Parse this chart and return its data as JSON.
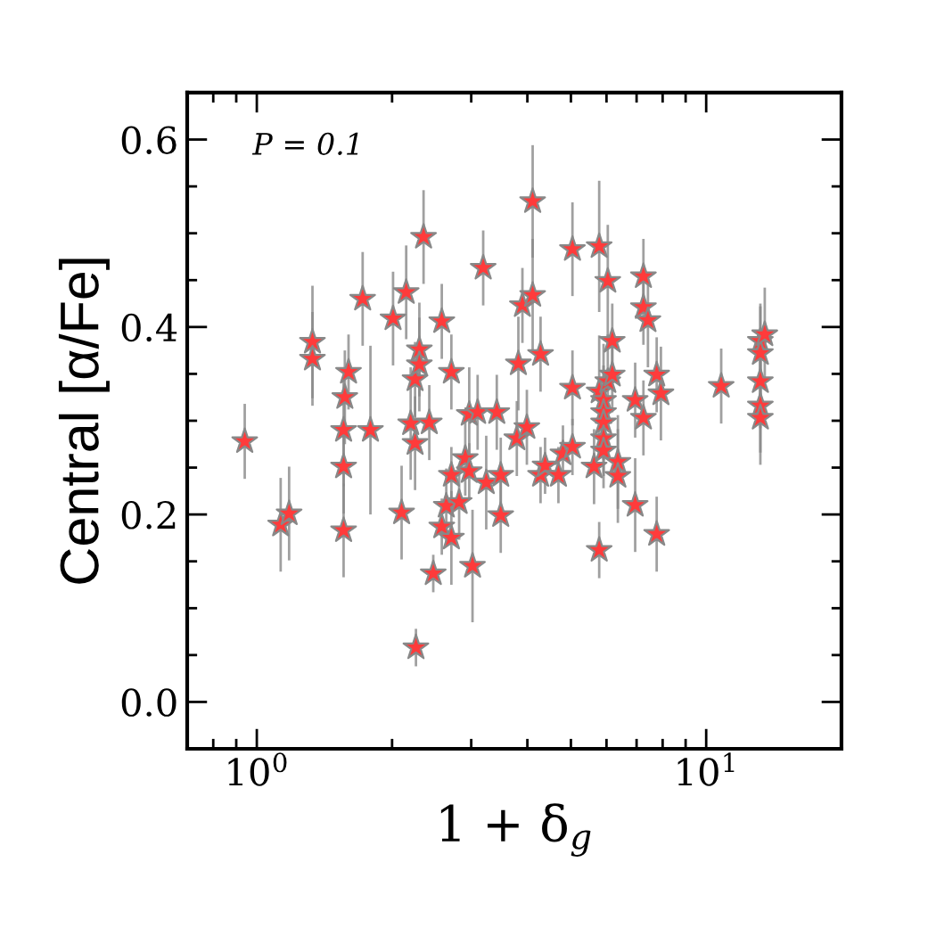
{
  "chart_data": {
    "type": "scatter",
    "xlabel": "1 + δ$_{g}$",
    "ylabel": "Central [α/Fe]",
    "annotations": [
      "P = 0.1"
    ],
    "log": "x",
    "grid": false,
    "marker": "star",
    "xlim": [
      0.7,
      20
    ],
    "xticks": [
      {
        "value": 1,
        "label": "10$^{0}$"
      },
      {
        "value": 10,
        "label": "10$^{1}$"
      }
    ],
    "ylim": [
      -0.05,
      0.65
    ],
    "yticks": [
      {
        "value": 0.0,
        "label": "0.0"
      },
      {
        "value": 0.2,
        "label": "0.2"
      },
      {
        "value": 0.4,
        "label": "0.4"
      },
      {
        "value": 0.6,
        "label": "0.6"
      }
    ],
    "series": [
      {
        "color": "#ff3b3b",
        "x": [
          0.94,
          1.13,
          1.18,
          1.33,
          1.33,
          1.56,
          1.56,
          1.56,
          1.57,
          1.6,
          1.72,
          1.79,
          2.01,
          2.1,
          2.15,
          2.2,
          2.25,
          2.25,
          2.26,
          2.3,
          2.3,
          2.35,
          2.42,
          2.47,
          2.58,
          2.58,
          2.64,
          2.71,
          2.71,
          2.71,
          2.82,
          2.91,
          2.97,
          2.97,
          3.02,
          3.1,
          3.19,
          3.24,
          3.42,
          3.49,
          3.49,
          3.79,
          3.82,
          3.9,
          3.99,
          4.11,
          4.11,
          4.28,
          4.28,
          4.38,
          4.69,
          4.8,
          5.04,
          5.04,
          5.04,
          5.63,
          5.78,
          5.78,
          5.78,
          5.91,
          5.91,
          5.91,
          5.91,
          5.91,
          6.04,
          6.04,
          6.18,
          6.18,
          6.36,
          6.36,
          6.95,
          6.95,
          7.25,
          7.25,
          7.25,
          7.42,
          7.76,
          7.76,
          7.93,
          10.8,
          13.2,
          13.2,
          13.2,
          13.2,
          13.2,
          13.5
        ],
        "values": [
          0.278,
          0.189,
          0.201,
          0.384,
          0.366,
          0.183,
          0.251,
          0.29,
          0.325,
          0.352,
          0.43,
          0.29,
          0.409,
          0.202,
          0.437,
          0.297,
          0.276,
          0.344,
          0.058,
          0.376,
          0.36,
          0.496,
          0.298,
          0.137,
          0.187,
          0.406,
          0.209,
          0.175,
          0.242,
          0.352,
          0.213,
          0.26,
          0.246,
          0.307,
          0.145,
          0.309,
          0.463,
          0.234,
          0.309,
          0.199,
          0.242,
          0.281,
          0.361,
          0.423,
          0.293,
          0.534,
          0.434,
          0.371,
          0.242,
          0.252,
          0.242,
          0.265,
          0.483,
          0.335,
          0.272,
          0.251,
          0.486,
          0.331,
          0.162,
          0.322,
          0.309,
          0.298,
          0.281,
          0.268,
          0.449,
          0.342,
          0.349,
          0.385,
          0.256,
          0.241,
          0.322,
          0.21,
          0.454,
          0.421,
          0.303,
          0.407,
          0.349,
          0.179,
          0.329,
          0.337,
          0.385,
          0.372,
          0.342,
          0.316,
          0.303,
          0.392
        ],
        "errors": [
          0.04,
          0.05,
          0.05,
          0.06,
          0.05,
          0.05,
          0.05,
          0.06,
          0.05,
          0.04,
          0.05,
          0.09,
          0.05,
          0.05,
          0.05,
          0.06,
          0.05,
          0.04,
          0.02,
          0.05,
          0.05,
          0.05,
          0.04,
          0.02,
          0.03,
          0.04,
          0.04,
          0.05,
          0.03,
          0.04,
          0.04,
          0.04,
          0.03,
          0.05,
          0.06,
          0.04,
          0.04,
          0.05,
          0.04,
          0.04,
          0.04,
          0.04,
          0.05,
          0.04,
          0.04,
          0.06,
          0.06,
          0.04,
          0.03,
          0.03,
          0.03,
          0.03,
          0.05,
          0.04,
          0.03,
          0.04,
          0.07,
          0.06,
          0.03,
          0.06,
          0.05,
          0.04,
          0.04,
          0.04,
          0.06,
          0.05,
          0.04,
          0.04,
          0.05,
          0.05,
          0.04,
          0.05,
          0.04,
          0.04,
          0.04,
          0.05,
          0.04,
          0.04,
          0.05,
          0.04,
          0.04,
          0.05,
          0.05,
          0.05,
          0.05,
          0.05
        ]
      }
    ]
  }
}
